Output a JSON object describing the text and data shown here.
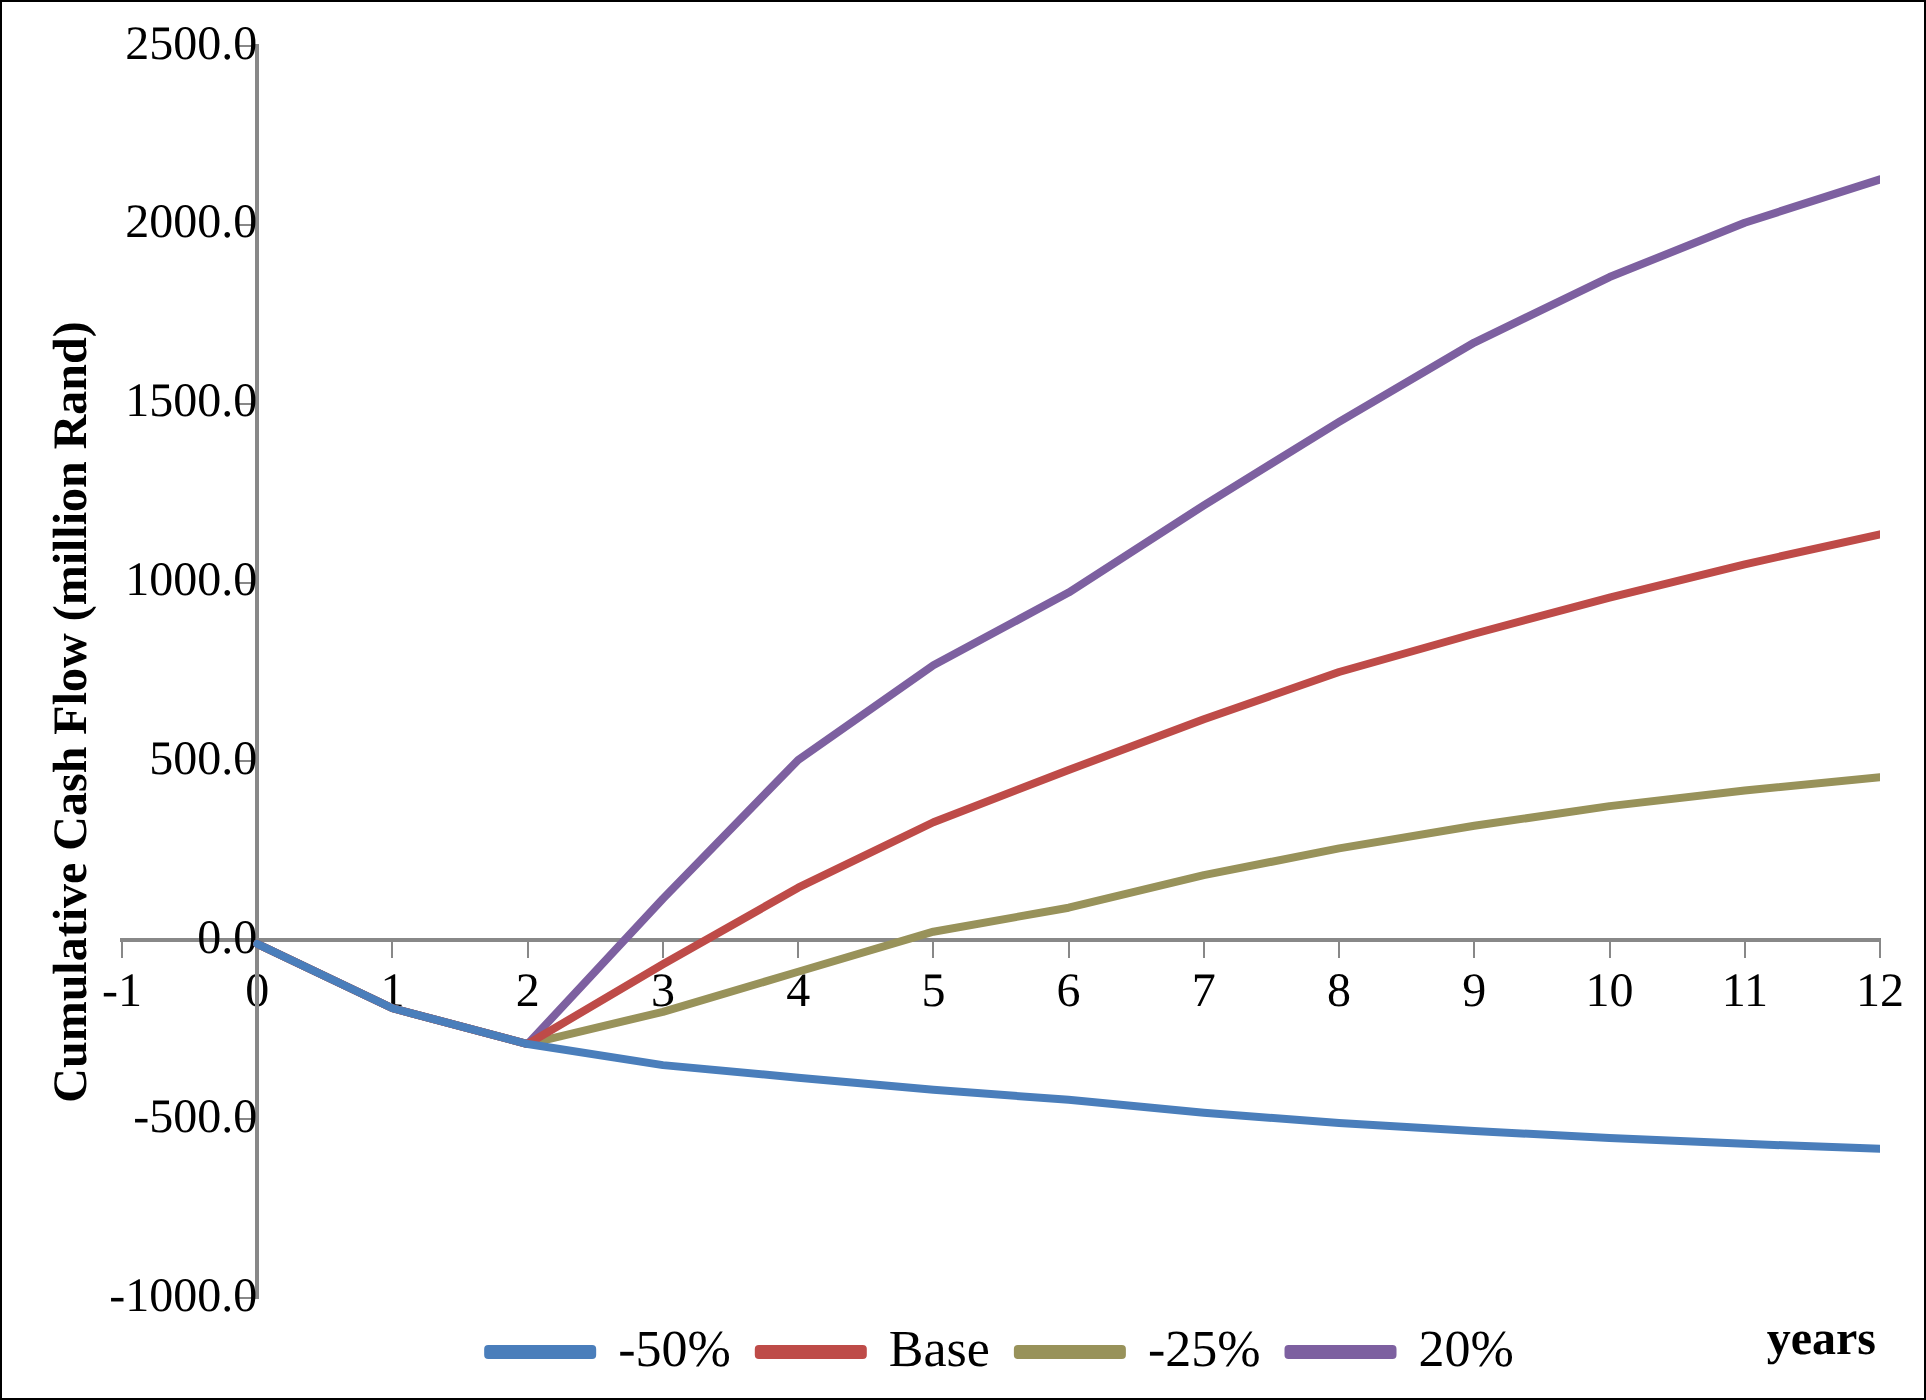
{
  "chart_data": {
    "type": "line",
    "xlabel": "years",
    "ylabel": "Cumulative Cash Flow (million Rand)",
    "x": [
      0,
      1,
      2,
      3,
      4,
      5,
      6,
      7,
      8,
      9,
      10,
      11,
      12
    ],
    "series": [
      {
        "name": "-50%",
        "color": "#4a7ebb",
        "values": [
          -10,
          -190,
          -290,
          -349,
          -384,
          -418,
          -446,
          -482,
          -511,
          -533,
          -553,
          -569,
          -583
        ]
      },
      {
        "name": "Base",
        "color": "#be4b48",
        "values": [
          -10,
          -190,
          -290,
          -67,
          147,
          330,
          476,
          618,
          750,
          857,
          958,
          1051,
          1135
        ]
      },
      {
        "name": "-25%",
        "color": "#98925a",
        "values": [
          -10,
          -190,
          -290,
          -200,
          -88,
          24,
          91,
          182,
          257,
          320,
          375,
          419,
          456
        ]
      },
      {
        "name": "20%",
        "color": "#7d60a0",
        "values": [
          -10,
          -190,
          -290,
          116,
          504,
          769,
          972,
          1216,
          1449,
          1671,
          1854,
          2006,
          2127
        ]
      }
    ],
    "xlim": [
      -1,
      12
    ],
    "xticks": [
      -1,
      0,
      1,
      2,
      3,
      4,
      5,
      6,
      7,
      8,
      9,
      10,
      11,
      12
    ],
    "ylim": [
      -1000,
      2500
    ],
    "yticks": [
      {
        "value": -1000,
        "label": "-1000.0"
      },
      {
        "value": -500,
        "label": "-500.0"
      },
      {
        "value": 0,
        "label": "0.0"
      },
      {
        "value": 500,
        "label": "500.0"
      },
      {
        "value": 1000,
        "label": "1000.0"
      },
      {
        "value": 1500,
        "label": "1500.0"
      },
      {
        "value": 2000,
        "label": "2000.0"
      },
      {
        "value": 2500,
        "label": "2500.0"
      }
    ],
    "grid": false,
    "legend": "bottom",
    "marker": "none",
    "line_style": "solid"
  }
}
